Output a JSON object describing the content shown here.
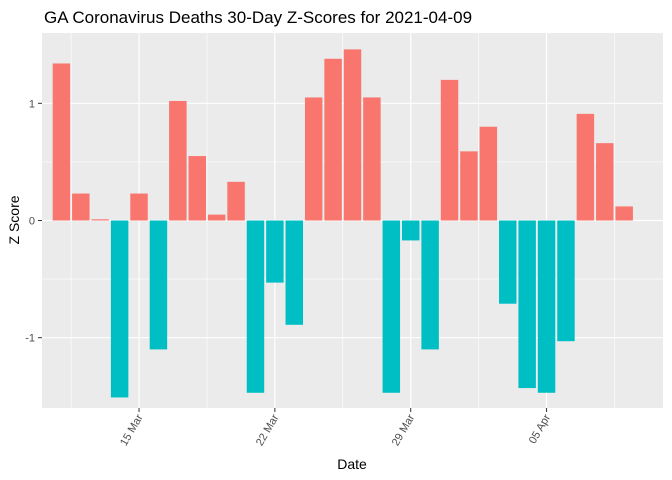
{
  "chart_data": {
    "type": "bar",
    "title": "GA Coronavirus Deaths 30-Day Z-Scores for 2021-04-09",
    "xlabel": "Date",
    "ylabel": "Z Score",
    "ylim": [
      -1.6,
      1.6
    ],
    "y_ticks": [
      -1,
      0,
      1
    ],
    "x_ticks": [
      {
        "date": "2021-03-15",
        "label": "15 Mar"
      },
      {
        "date": "2021-03-22",
        "label": "22 Mar"
      },
      {
        "date": "2021-03-29",
        "label": "29 Mar"
      },
      {
        "date": "2021-04-05",
        "label": "05 Apr"
      }
    ],
    "x_range": [
      "2021-03-10",
      "2021-04-11"
    ],
    "categories": [
      "2021-03-11",
      "2021-03-12",
      "2021-03-13",
      "2021-03-14",
      "2021-03-15",
      "2021-03-16",
      "2021-03-17",
      "2021-03-18",
      "2021-03-19",
      "2021-03-20",
      "2021-03-21",
      "2021-03-22",
      "2021-03-23",
      "2021-03-24",
      "2021-03-25",
      "2021-03-26",
      "2021-03-27",
      "2021-03-28",
      "2021-03-29",
      "2021-03-30",
      "2021-03-31",
      "2021-04-01",
      "2021-04-02",
      "2021-04-03",
      "2021-04-04",
      "2021-04-05",
      "2021-04-06",
      "2021-04-07",
      "2021-04-08",
      "2021-04-09"
    ],
    "values": [
      1.34,
      0.23,
      0.01,
      -1.51,
      0.23,
      -1.1,
      1.02,
      0.55,
      0.05,
      0.33,
      -1.47,
      -0.53,
      -0.89,
      1.05,
      1.38,
      1.46,
      1.05,
      -1.47,
      -0.17,
      -1.1,
      1.2,
      0.59,
      0.8,
      -0.71,
      -1.43,
      -1.47,
      -1.03,
      0.91,
      0.66,
      0.12
    ],
    "colors": {
      "positive": "#F8766D",
      "negative": "#00BFC4"
    },
    "panel_background": "#EBEBEB",
    "grid": true
  }
}
